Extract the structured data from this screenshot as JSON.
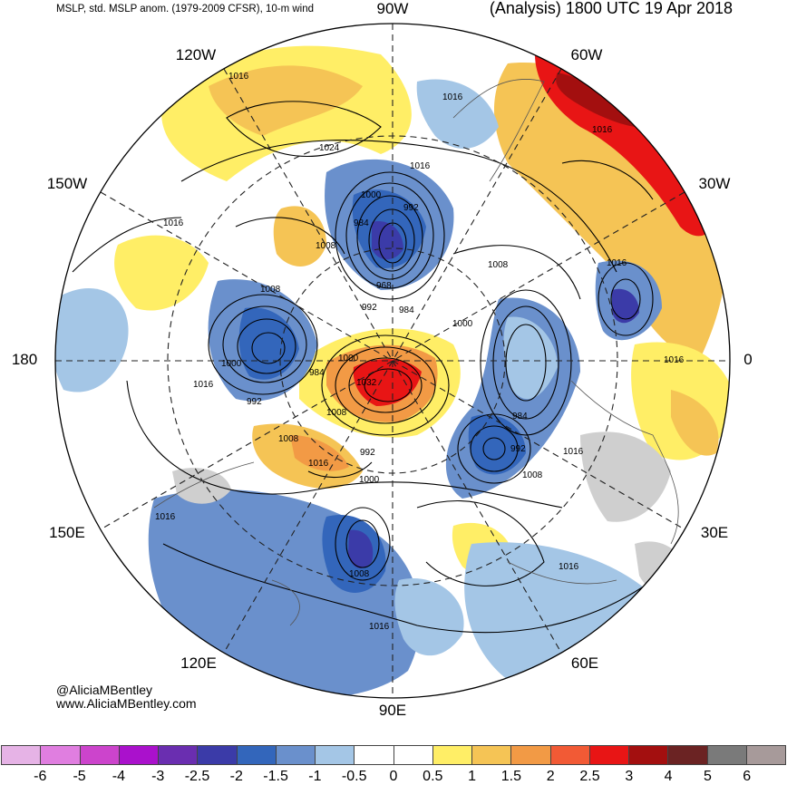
{
  "header": {
    "left_title": "MSLP, std. MSLP anom. (1979-2009 CFSR), 10-m wind",
    "right_title": "(Analysis) 1800 UTC 19 Apr 2018"
  },
  "longitudes": {
    "n90w": "90W",
    "n120w": "120W",
    "n60w": "60W",
    "n150w": "150W",
    "n30w": "30W",
    "n180": "180",
    "n0": "0",
    "n150e": "150E",
    "n30e": "30E",
    "n120e": "120E",
    "n60e": "60E",
    "n90e": "90E"
  },
  "isobar_labels": {
    "a": "1016",
    "b": "1016",
    "c": "1016",
    "d": "1024",
    "e": "1016",
    "f": "1000",
    "g": "992",
    "h": "984",
    "i": "1008",
    "j": "1008",
    "k": "968",
    "l": "992",
    "m": "984",
    "n": "1016",
    "o": "1000",
    "p": "1008",
    "q": "1000",
    "r": "984",
    "s": "1016",
    "t": "992",
    "u": "1016",
    "v": "1032",
    "w": "1000",
    "x": "1008",
    "y": "984",
    "z": "992",
    "aa": "1016",
    "ab": "1008",
    "ac": "1008",
    "ad": "992",
    "ae": "1016",
    "af": "1000",
    "ag": "1016",
    "ah": "1008",
    "ai": "1016",
    "aj": "1016"
  },
  "credits": {
    "handle": "@AliciaMBentley",
    "url": "www.AliciaMBentley.com"
  },
  "colorbar": {
    "colors": [
      "#e6b3e6",
      "#e07ee0",
      "#cc44cc",
      "#aa11cc",
      "#6a2eb0",
      "#3b3ba8",
      "#3366bb",
      "#6a90cc",
      "#a4c6e6",
      "#ffffff",
      "#ffffff",
      "#ffee66",
      "#f5c455",
      "#f29a45",
      "#f25a35",
      "#e81515",
      "#a30f0f",
      "#6b2323",
      "#7a7a7a",
      "#a79a9a"
    ],
    "ticks": [
      "-6",
      "-5",
      "-4",
      "-3",
      "-2.5",
      "-2",
      "-1.5",
      "-1",
      "-0.5",
      "0",
      "0.5",
      "1",
      "1.5",
      "2",
      "2.5",
      "3",
      "4",
      "5",
      "6"
    ]
  }
}
